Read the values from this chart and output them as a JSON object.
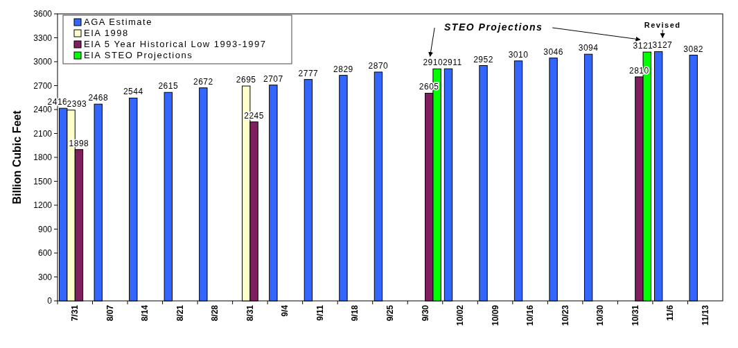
{
  "chart_data": {
    "type": "bar",
    "ylabel": "Billion Cubic Feet",
    "categories": [
      "7/31",
      "8/07",
      "8/14",
      "8/21",
      "8/28",
      "8/31",
      "9/4",
      "9/11",
      "9/18",
      "9/25",
      "9/30",
      "10/02",
      "10/09",
      "10/16",
      "10/23",
      "10/30",
      "10/31",
      "11/6",
      "11/13"
    ],
    "series": [
      {
        "name": "AGA Estimate",
        "color": "#3366ff",
        "values": [
          2416,
          2468,
          2544,
          2615,
          2672,
          null,
          2707,
          2777,
          2829,
          2870,
          null,
          2911,
          2952,
          3010,
          3046,
          3094,
          null,
          3127,
          3082
        ]
      },
      {
        "name": "EIA 1998",
        "color": "#ffffcc",
        "values": [
          2393,
          null,
          null,
          null,
          null,
          2695,
          null,
          null,
          null,
          null,
          null,
          null,
          null,
          null,
          null,
          null,
          null,
          null,
          null
        ]
      },
      {
        "name": "EIA 5 Year Historical Low 1993-1997",
        "color": "#7f1f5f",
        "values": [
          1898,
          null,
          null,
          null,
          null,
          2245,
          null,
          null,
          null,
          null,
          2605,
          null,
          null,
          null,
          null,
          null,
          2810,
          null,
          null
        ]
      },
      {
        "name": "EIA STEO Projections",
        "color": "#00ff00",
        "values": [
          null,
          null,
          null,
          null,
          null,
          null,
          null,
          null,
          null,
          null,
          2910,
          null,
          null,
          null,
          null,
          null,
          3121,
          null,
          null
        ]
      }
    ],
    "ylim": [
      0,
      3600
    ],
    "yticks": [
      0,
      300,
      600,
      900,
      1200,
      1500,
      1800,
      2100,
      2400,
      2700,
      3000,
      3300,
      3600
    ],
    "data_labels": true,
    "legend": "top left",
    "grid": false,
    "annotations": [
      "STEO Projections",
      "Revised"
    ]
  }
}
